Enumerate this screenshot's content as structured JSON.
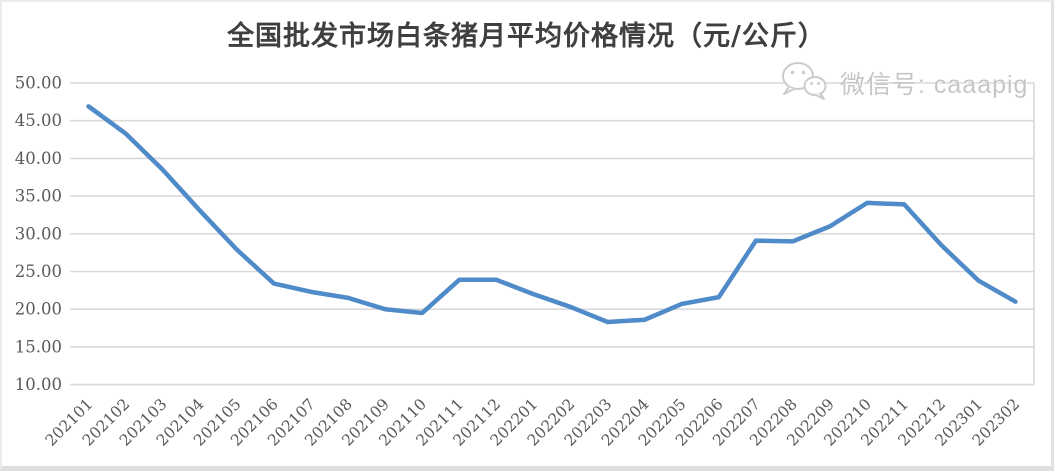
{
  "title": "全国批发市场白条猪月平均价格情况（元/公斤）",
  "watermark": {
    "icon": "wechat-icon",
    "label": "微信号: caaapig",
    "color": "#c8c8c8"
  },
  "colors": {
    "series_line": "#4f8bc9",
    "gridline": "#d9d9d9",
    "axis_text": "#595959",
    "title_text": "#3f3f3f",
    "plot_border": "#d9d9d9"
  },
  "chart_data": {
    "type": "line",
    "title": "全国批发市场白条猪月平均价格情况（元/公斤）",
    "xlabel": "",
    "ylabel": "",
    "ylim": [
      10,
      50
    ],
    "ytick_step": 5,
    "yticks": [
      50,
      45,
      40,
      35,
      30,
      25,
      20,
      15,
      10
    ],
    "ytick_labels": [
      "50.00",
      "45.00",
      "40.00",
      "35.00",
      "30.00",
      "25.00",
      "20.00",
      "15.00",
      "10.00"
    ],
    "x_label_rotation": 45,
    "grid": true,
    "legend": "none",
    "categories": [
      "202101",
      "202102",
      "202103",
      "202104",
      "202105",
      "202106",
      "202107",
      "202108",
      "202109",
      "202110",
      "202111",
      "202112",
      "202201",
      "202202",
      "202203",
      "202204",
      "202205",
      "202206",
      "202207",
      "202208",
      "202209",
      "202210",
      "202211",
      "202212",
      "202301",
      "202302"
    ],
    "series": [
      {
        "name": "白条猪月平均价格",
        "values": [
          46.9,
          43.3,
          38.5,
          33.1,
          27.9,
          23.4,
          22.3,
          21.5,
          20.0,
          19.5,
          23.9,
          23.9,
          22.0,
          20.3,
          18.3,
          18.6,
          20.7,
          21.6,
          29.1,
          29.0,
          31.0,
          34.1,
          33.9,
          28.5,
          23.8,
          21.0
        ]
      }
    ]
  }
}
